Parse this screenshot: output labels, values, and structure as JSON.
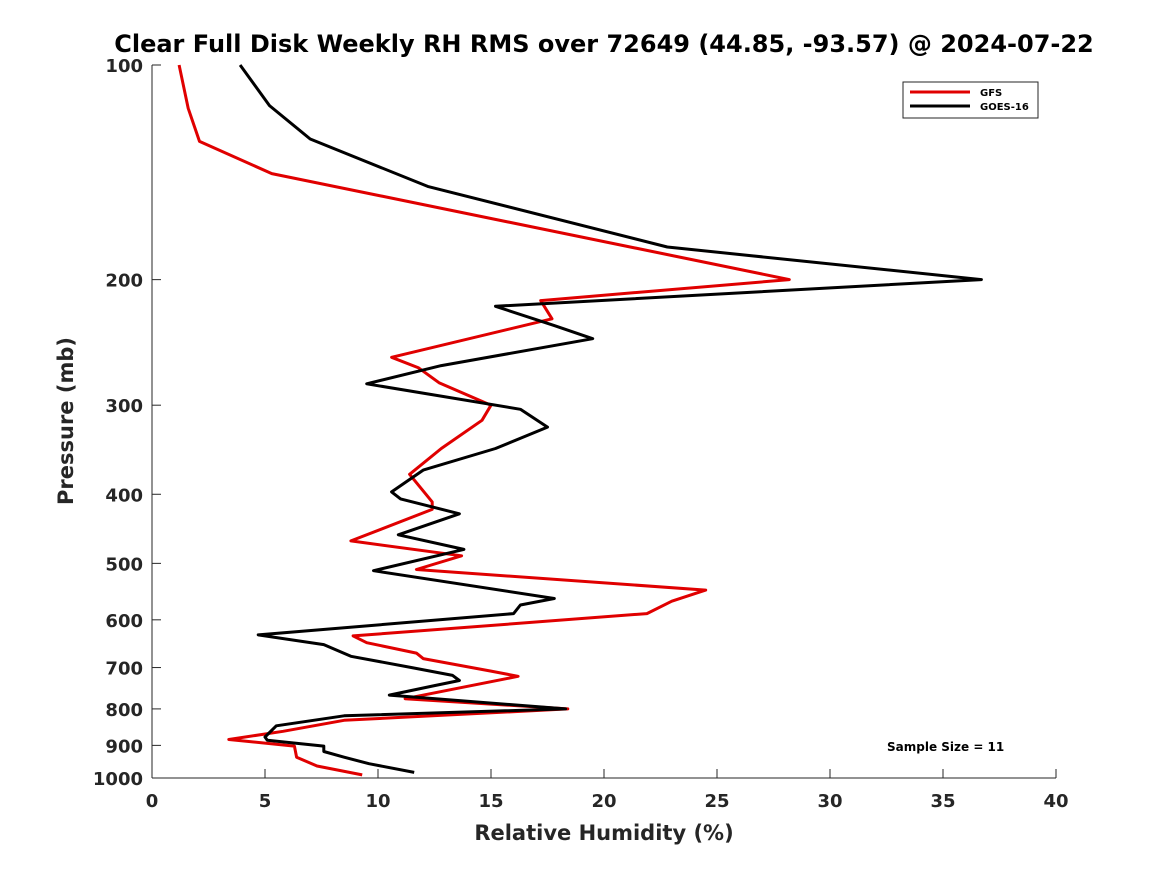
{
  "chart_data": {
    "type": "line",
    "title": "Clear Full Disk Weekly RH RMS over 72649 (44.85, -93.57) @ 2024-07-22",
    "xlabel": "Relative Humidity (%)",
    "ylabel": "Pressure (mb)",
    "xlim": [
      0,
      40
    ],
    "ylim": [
      100,
      1000
    ],
    "y_scale": "log",
    "y_reversed": true,
    "x_ticks": [
      0,
      5,
      10,
      15,
      20,
      25,
      30,
      35,
      40
    ],
    "y_ticks": [
      100,
      200,
      300,
      400,
      500,
      600,
      700,
      800,
      900,
      1000
    ],
    "grid": false,
    "legend_position": "top-right",
    "annotation": "Sample Size = 11",
    "series": [
      {
        "name": "GFS",
        "color": "#e00000",
        "points": [
          [
            1.2,
            100
          ],
          [
            1.6,
            115
          ],
          [
            2.1,
            128
          ],
          [
            5.3,
            142
          ],
          [
            23,
            185
          ],
          [
            28.2,
            200
          ],
          [
            17.2,
            214
          ],
          [
            17.7,
            227
          ],
          [
            10.6,
            257
          ],
          [
            11.8,
            266
          ],
          [
            12.7,
            279
          ],
          [
            15.0,
            300
          ],
          [
            14.6,
            315
          ],
          [
            12.8,
            345
          ],
          [
            11.4,
            375
          ],
          [
            12.4,
            410
          ],
          [
            12.4,
            420
          ],
          [
            8.8,
            465
          ],
          [
            13.7,
            488
          ],
          [
            11.7,
            510
          ],
          [
            24.5,
            545
          ],
          [
            23.0,
            565
          ],
          [
            21.9,
            588
          ],
          [
            8.9,
            632
          ],
          [
            9.5,
            646
          ],
          [
            11.7,
            668
          ],
          [
            12.0,
            680
          ],
          [
            15.0,
            708
          ],
          [
            16.2,
            720
          ],
          [
            11.2,
            774
          ],
          [
            18.4,
            800
          ],
          [
            8.5,
            830
          ],
          [
            5.8,
            860
          ],
          [
            3.4,
            883
          ],
          [
            6.3,
            902
          ],
          [
            6.4,
            935
          ],
          [
            7.3,
            962
          ],
          [
            9.3,
            990
          ]
        ]
      },
      {
        "name": "GOES-16",
        "color": "#000000",
        "points": [
          [
            3.9,
            100
          ],
          [
            5.2,
            114
          ],
          [
            7.0,
            127
          ],
          [
            12.2,
            148
          ],
          [
            22.8,
            180
          ],
          [
            36.7,
            200
          ],
          [
            15.2,
            218
          ],
          [
            17.8,
            232
          ],
          [
            19.5,
            242
          ],
          [
            12.8,
            264
          ],
          [
            9.5,
            280
          ],
          [
            16.3,
            304
          ],
          [
            17.5,
            322
          ],
          [
            15.2,
            345
          ],
          [
            12.0,
            370
          ],
          [
            10.6,
            397
          ],
          [
            11.0,
            406
          ],
          [
            13.6,
            426
          ],
          [
            10.9,
            456
          ],
          [
            13.8,
            478
          ],
          [
            9.8,
            512
          ],
          [
            17.8,
            560
          ],
          [
            16.3,
            572
          ],
          [
            16.0,
            588
          ],
          [
            4.7,
            630
          ],
          [
            7.6,
            650
          ],
          [
            8.8,
            675
          ],
          [
            11.5,
            700
          ],
          [
            13.3,
            718
          ],
          [
            13.6,
            730
          ],
          [
            12.5,
            742
          ],
          [
            10.5,
            765
          ],
          [
            18.3,
            800
          ],
          [
            8.5,
            818
          ],
          [
            5.5,
            845
          ],
          [
            5.0,
            876
          ],
          [
            5.1,
            885
          ],
          [
            7.6,
            902
          ],
          [
            7.6,
            918
          ],
          [
            8.5,
            935
          ],
          [
            9.6,
            955
          ],
          [
            11.6,
            982
          ]
        ]
      }
    ]
  }
}
